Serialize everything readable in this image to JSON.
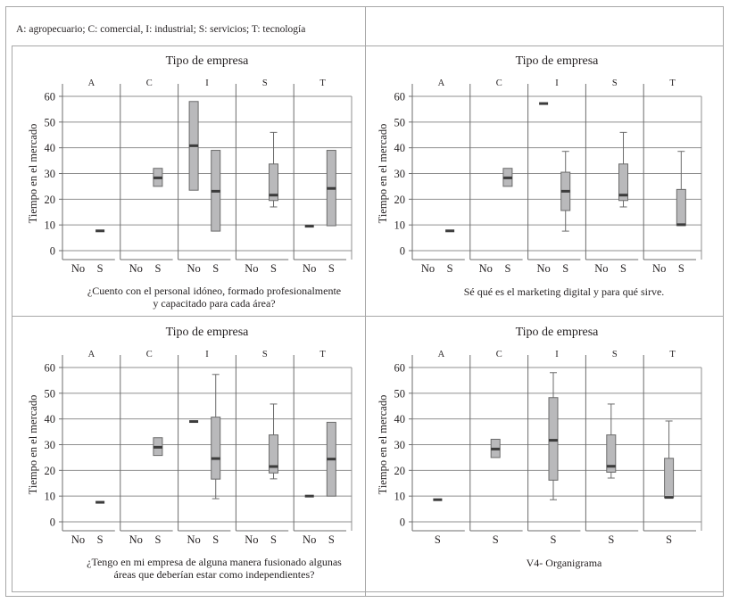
{
  "legend": "A: agropecuario; C: comercial, I: industrial; S: servicios; T: tecnología",
  "chart_data": [
    {
      "type": "boxplot",
      "title": "Tipo de empresa",
      "facets": [
        "A",
        "C",
        "I",
        "S",
        "T"
      ],
      "categories": [
        "No",
        "S"
      ],
      "ylabel": "Tiempo en el mercado",
      "ylim": [
        0,
        60
      ],
      "yticks": [
        0,
        10,
        20,
        30,
        40,
        50,
        60
      ],
      "grid": true,
      "caption": [
        "¿Cuento con el personal idóneo, formado profesionalmente",
        "y capacitado para cada área?"
      ],
      "boxes": [
        {
          "facet": "A",
          "category": "S",
          "min": 7.7,
          "q1": 7.7,
          "median": 7.7,
          "q3": 7.7,
          "max": 7.7
        },
        {
          "facet": "C",
          "category": "S",
          "min": 25,
          "q1": 25,
          "median": 28.3,
          "q3": 32,
          "max": 32
        },
        {
          "facet": "I",
          "category": "No",
          "min": 23.5,
          "q1": 23.5,
          "median": 40.8,
          "q3": 58,
          "max": 58
        },
        {
          "facet": "I",
          "category": "S",
          "min": 7.6,
          "q1": 7.6,
          "median": 23.1,
          "q3": 39,
          "max": 39
        },
        {
          "facet": "S",
          "category": "S",
          "min": 17,
          "q1": 19.5,
          "median": 21.6,
          "q3": 33.7,
          "max": 46
        },
        {
          "facet": "T",
          "category": "No",
          "min": 9.5,
          "q1": 9.5,
          "median": 9.5,
          "q3": 9.5,
          "max": 9.5
        },
        {
          "facet": "T",
          "category": "S",
          "min": 9.7,
          "q1": 9.7,
          "median": 24.2,
          "q3": 39,
          "max": 39
        }
      ]
    },
    {
      "type": "boxplot",
      "title": "Tipo de empresa",
      "facets": [
        "A",
        "C",
        "I",
        "S",
        "T"
      ],
      "categories": [
        "No",
        "S"
      ],
      "ylabel": "Tiempo en el mercado",
      "ylim": [
        0,
        60
      ],
      "yticks": [
        0,
        10,
        20,
        30,
        40,
        50,
        60
      ],
      "grid": true,
      "caption": [
        "Sé qué es el marketing digital y para qué sirve."
      ],
      "boxes": [
        {
          "facet": "A",
          "category": "S",
          "min": 7.7,
          "q1": 7.7,
          "median": 7.7,
          "q3": 7.7,
          "max": 7.7
        },
        {
          "facet": "C",
          "category": "S",
          "min": 25,
          "q1": 25,
          "median": 28.3,
          "q3": 32,
          "max": 32
        },
        {
          "facet": "I",
          "category": "No",
          "min": 57.2,
          "q1": 57.2,
          "median": 57.2,
          "q3": 57.2,
          "max": 57.2
        },
        {
          "facet": "I",
          "category": "S",
          "min": 7.6,
          "q1": 15.6,
          "median": 23.1,
          "q3": 30.5,
          "max": 38.6
        },
        {
          "facet": "S",
          "category": "S",
          "min": 17,
          "q1": 19.5,
          "median": 21.6,
          "q3": 33.7,
          "max": 46
        },
        {
          "facet": "T",
          "category": "S",
          "min": 9.8,
          "q1": 9.8,
          "median": 10.1,
          "q3": 23.8,
          "max": 38.6
        }
      ]
    },
    {
      "type": "boxplot",
      "title": "Tipo de empresa",
      "facets": [
        "A",
        "C",
        "I",
        "S",
        "T"
      ],
      "categories": [
        "No",
        "S"
      ],
      "ylabel": "Tiempo en el mercado",
      "ylim": [
        0,
        60
      ],
      "yticks": [
        0,
        10,
        20,
        30,
        40,
        50,
        60
      ],
      "grid": true,
      "caption": [
        "¿Tengo en mi empresa de alguna manera fusionado algunas",
        "áreas que deberían estar como independientes?"
      ],
      "boxes": [
        {
          "facet": "A",
          "category": "S",
          "min": 7.6,
          "q1": 7.6,
          "median": 7.6,
          "q3": 7.6,
          "max": 7.6
        },
        {
          "facet": "C",
          "category": "S",
          "min": 25.8,
          "q1": 25.8,
          "median": 29,
          "q3": 32.7,
          "max": 32.7
        },
        {
          "facet": "I",
          "category": "No",
          "min": 39,
          "q1": 39,
          "median": 39,
          "q3": 39,
          "max": 39
        },
        {
          "facet": "I",
          "category": "S",
          "min": 9,
          "q1": 16.6,
          "median": 24.6,
          "q3": 40.7,
          "max": 57.3
        },
        {
          "facet": "S",
          "category": "S",
          "min": 16.7,
          "q1": 19,
          "median": 21.5,
          "q3": 33.8,
          "max": 45.8
        },
        {
          "facet": "T",
          "category": "No",
          "min": 10,
          "q1": 10,
          "median": 10,
          "q3": 10,
          "max": 10
        },
        {
          "facet": "T",
          "category": "S",
          "min": 10,
          "q1": 10,
          "median": 24.4,
          "q3": 38.7,
          "max": 38.7
        }
      ]
    },
    {
      "type": "boxplot",
      "title": "Tipo de empresa",
      "facets": [
        "A",
        "C",
        "I",
        "S",
        "T"
      ],
      "categories": [
        "S"
      ],
      "ylabel": "Tiempo en el mercado",
      "ylim": [
        0,
        60
      ],
      "yticks": [
        0,
        10,
        20,
        30,
        40,
        50,
        60
      ],
      "grid": true,
      "caption": [
        "V4- Organigrama"
      ],
      "boxes": [
        {
          "facet": "A",
          "category": "S",
          "min": 8.6,
          "q1": 8.6,
          "median": 8.6,
          "q3": 8.6,
          "max": 8.6
        },
        {
          "facet": "C",
          "category": "S",
          "min": 25,
          "q1": 25,
          "median": 28.3,
          "q3": 32.1,
          "max": 32.1
        },
        {
          "facet": "I",
          "category": "S",
          "min": 8.6,
          "q1": 16.2,
          "median": 31.7,
          "q3": 48.3,
          "max": 58
        },
        {
          "facet": "S",
          "category": "S",
          "min": 17,
          "q1": 19.3,
          "median": 21.6,
          "q3": 33.8,
          "max": 45.8
        },
        {
          "facet": "T",
          "category": "S",
          "min": 9.5,
          "q1": 9.5,
          "median": 9.5,
          "q3": 24.7,
          "max": 39.2
        }
      ]
    }
  ]
}
